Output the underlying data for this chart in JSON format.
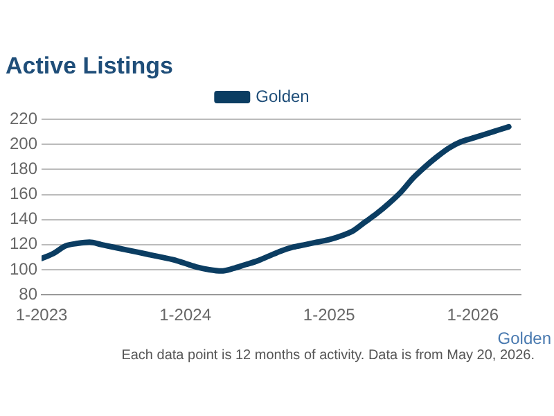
{
  "chart_data": {
    "type": "line",
    "title": "Active Listings",
    "x": [
      "2023-01",
      "2023-02",
      "2023-03",
      "2023-04",
      "2023-05",
      "2023-06",
      "2023-07",
      "2023-08",
      "2023-09",
      "2023-10",
      "2023-11",
      "2023-12",
      "2024-01",
      "2024-02",
      "2024-03",
      "2024-04",
      "2024-05",
      "2024-06",
      "2024-07",
      "2024-08",
      "2024-09",
      "2024-10",
      "2024-11",
      "2024-12",
      "2025-01",
      "2025-02",
      "2025-03",
      "2025-04",
      "2025-05",
      "2025-06",
      "2025-07",
      "2025-08",
      "2025-09",
      "2025-10",
      "2025-11",
      "2025-12",
      "2026-01",
      "2026-02",
      "2026-03",
      "2026-04"
    ],
    "series": [
      {
        "name": "Golden",
        "color": "#0b3d62",
        "values": [
          109,
          113,
          119,
          121,
          122,
          120,
          118,
          116,
          114,
          112,
          110,
          108,
          105,
          102,
          100,
          99,
          101,
          104,
          107,
          111,
          115,
          118,
          120,
          122,
          124,
          127,
          131,
          138,
          145,
          153,
          162,
          173,
          182,
          190,
          197,
          202,
          205,
          208,
          211,
          214
        ]
      }
    ],
    "xlim": [
      "2023-01",
      "2026-05"
    ],
    "xticks": [
      {
        "value": "2023-01",
        "label": "1-2023"
      },
      {
        "value": "2024-01",
        "label": "1-2024"
      },
      {
        "value": "2025-01",
        "label": "1-2025"
      },
      {
        "value": "2026-01",
        "label": "1-2026"
      }
    ],
    "ylim": [
      80,
      220
    ],
    "yticks": [
      80,
      100,
      120,
      140,
      160,
      180,
      200,
      220
    ],
    "grid": "y",
    "legend": "top",
    "marker": "none",
    "line_style": "solid",
    "annotations": [
      "Golden",
      "Each data point is 12 months of activity. Data is from May 20, 2026."
    ]
  }
}
